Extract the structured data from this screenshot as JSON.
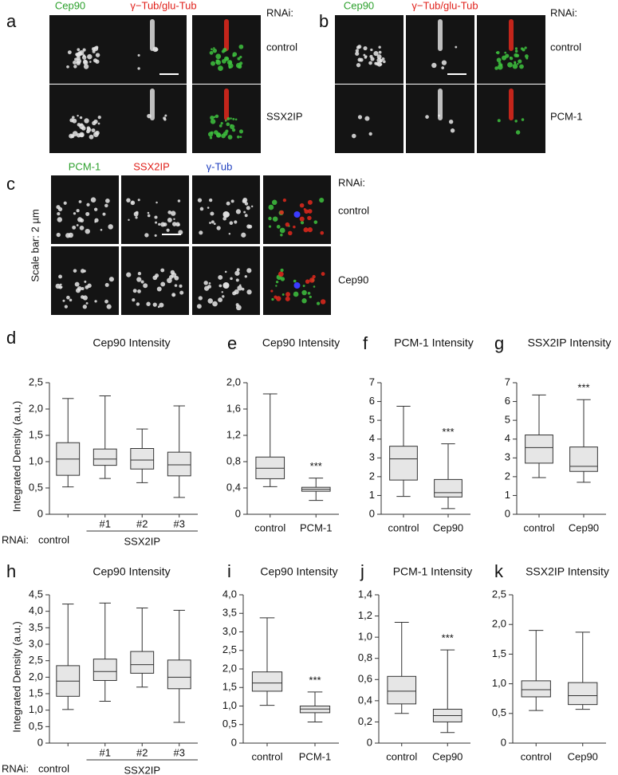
{
  "figure": {
    "panels": [
      {
        "letter": "a",
        "channels": [
          {
            "text": "Cep90",
            "color": "#2ca02c"
          },
          {
            "text": "γ−Tub/glu-Tub",
            "color": "#e0201a"
          }
        ],
        "rnai": "RNAi:",
        "rows": [
          "control",
          "SSX2IP"
        ]
      },
      {
        "letter": "b",
        "channels": [
          {
            "text": "Cep90",
            "color": "#2ca02c"
          },
          {
            "text": "γ−Tub/glu-Tub",
            "color": "#e0201a"
          }
        ],
        "rnai": "RNAi:",
        "rows": [
          "control",
          "PCM-1"
        ]
      },
      {
        "letter": "c",
        "channels": [
          {
            "text": "PCM-1",
            "color": "#2ca02c"
          },
          {
            "text": "SSX2IP",
            "color": "#e0201a"
          },
          {
            "text": "γ-Tub",
            "color": "#1f3fbf"
          }
        ],
        "rnai": "RNAi:",
        "rows": [
          "control",
          "Cep90"
        ]
      }
    ],
    "scale_note": "Scale bar: 2 µm"
  },
  "chart_data": [
    {
      "type": "box",
      "letter": "d",
      "title": "Cep90 Intensity",
      "ylabel": "Integrated Density (a.u.)",
      "rnai_label": "RNAi:",
      "group_label": "SSX2IP",
      "categories": [
        "control",
        "#1",
        "#2",
        "#3"
      ],
      "min": [
        0.52,
        0.68,
        0.6,
        0.32
      ],
      "q1": [
        0.74,
        0.93,
        0.86,
        0.73
      ],
      "median": [
        1.05,
        1.05,
        1.03,
        0.94
      ],
      "q3": [
        1.36,
        1.24,
        1.25,
        1.18
      ],
      "max": [
        2.2,
        2.25,
        1.62,
        2.06
      ],
      "significance": [
        null,
        null,
        null,
        null
      ],
      "ylim": [
        0,
        2.5
      ],
      "yticks": [
        0,
        {
          "value": 0.5,
          "label": "0,5"
        },
        {
          "value": 1,
          "label": "1,0"
        },
        {
          "value": 1.5,
          "label": "1,5"
        },
        {
          "value": 2,
          "label": "2,0"
        },
        {
          "value": 2.5,
          "label": "2,5"
        }
      ]
    },
    {
      "type": "box",
      "letter": "e",
      "title": "Cep90 Intensity",
      "categories": [
        "control",
        "PCM-1"
      ],
      "min": [
        0.42,
        0.21
      ],
      "q1": [
        0.54,
        0.35
      ],
      "median": [
        0.7,
        0.38
      ],
      "q3": [
        0.87,
        0.41
      ],
      "max": [
        1.83,
        0.55
      ],
      "significance": [
        null,
        "***"
      ],
      "ylim": [
        0,
        2
      ],
      "yticks": [
        0,
        {
          "value": 0.4,
          "label": "0,4"
        },
        {
          "value": 0.8,
          "label": "0,8"
        },
        {
          "value": 1.2,
          "label": "1,2"
        },
        {
          "value": 1.6,
          "label": "1,6"
        },
        {
          "value": 2,
          "label": "2,0"
        }
      ]
    },
    {
      "type": "box",
      "letter": "f",
      "title": "PCM-1 Intensity",
      "categories": [
        "control",
        "Cep90"
      ],
      "min": [
        0.95,
        0.3
      ],
      "q1": [
        1.82,
        0.92
      ],
      "median": [
        2.95,
        1.15
      ],
      "q3": [
        3.62,
        1.85
      ],
      "max": [
        5.75,
        3.75
      ],
      "significance": [
        null,
        "***"
      ],
      "ylim": [
        0,
        7
      ],
      "yticks": [
        0,
        1,
        2,
        3,
        4,
        5,
        6,
        7
      ]
    },
    {
      "type": "box",
      "letter": "g",
      "title": "SSX2IP Intensity",
      "categories": [
        "control",
        "Cep90"
      ],
      "min": [
        1.95,
        1.7
      ],
      "q1": [
        2.72,
        2.28
      ],
      "median": [
        3.55,
        2.55
      ],
      "q3": [
        4.22,
        3.58
      ],
      "max": [
        6.35,
        6.1
      ],
      "significance": [
        null,
        "***"
      ],
      "ylim": [
        0,
        7
      ],
      "yticks": [
        0,
        1,
        2,
        3,
        4,
        5,
        6,
        7
      ]
    },
    {
      "type": "box",
      "letter": "h",
      "title": "Cep90 Intensity",
      "ylabel": "Integrated Density (a.u.)",
      "rnai_label": "RNAi:",
      "group_label": "SSX2IP",
      "categories": [
        "control",
        "#1",
        "#2",
        "#3"
      ],
      "min": [
        1.02,
        1.27,
        1.7,
        0.63
      ],
      "q1": [
        1.42,
        1.9,
        2.12,
        1.65
      ],
      "median": [
        1.88,
        2.17,
        2.38,
        2.0
      ],
      "q3": [
        2.35,
        2.55,
        2.78,
        2.52
      ],
      "max": [
        4.22,
        4.25,
        4.1,
        4.03
      ],
      "significance": [
        null,
        null,
        null,
        null
      ],
      "ylim": [
        0,
        4.5
      ],
      "yticks": [
        0,
        {
          "value": 0.5,
          "label": "0,5"
        },
        {
          "value": 1,
          "label": "1,0"
        },
        {
          "value": 1.5,
          "label": "1,5"
        },
        {
          "value": 2,
          "label": "2,0"
        },
        {
          "value": 2.5,
          "label": "2,5"
        },
        {
          "value": 3,
          "label": "3,0"
        },
        {
          "value": 3.5,
          "label": "3,5"
        },
        {
          "value": 4,
          "label": "4,0"
        },
        {
          "value": 4.5,
          "label": "4,5"
        }
      ]
    },
    {
      "type": "box",
      "letter": "i",
      "title": "Cep90 Intensity",
      "categories": [
        "control",
        "PCM-1"
      ],
      "min": [
        1.02,
        0.57
      ],
      "q1": [
        1.4,
        0.82
      ],
      "median": [
        1.62,
        0.92
      ],
      "q3": [
        1.92,
        1.0
      ],
      "max": [
        3.38,
        1.38
      ],
      "significance": [
        null,
        "***"
      ],
      "ylim": [
        0,
        4
      ],
      "yticks": [
        0,
        {
          "value": 0.5,
          "label": "0,5"
        },
        {
          "value": 1,
          "label": "1,0"
        },
        {
          "value": 1.5,
          "label": "1,5"
        },
        {
          "value": 2,
          "label": "2,0"
        },
        {
          "value": 2.5,
          "label": "2,5"
        },
        {
          "value": 3,
          "label": "3,0"
        },
        {
          "value": 3.5,
          "label": "3,5"
        },
        {
          "value": 4,
          "label": "4,0"
        }
      ]
    },
    {
      "type": "box",
      "letter": "j",
      "title": "PCM-1 Intensity",
      "categories": [
        "control",
        "Cep90"
      ],
      "min": [
        0.28,
        0.1
      ],
      "q1": [
        0.37,
        0.2
      ],
      "median": [
        0.49,
        0.26
      ],
      "q3": [
        0.63,
        0.32
      ],
      "max": [
        1.14,
        0.88
      ],
      "significance": [
        null,
        "***"
      ],
      "ylim": [
        0,
        1.4
      ],
      "yticks": [
        0,
        {
          "value": 0.2,
          "label": "0,2"
        },
        {
          "value": 0.4,
          "label": "0,4"
        },
        {
          "value": 0.6,
          "label": "0,6"
        },
        {
          "value": 0.8,
          "label": "0,8"
        },
        {
          "value": 1,
          "label": "1,0"
        },
        {
          "value": 1.2,
          "label": "1,2"
        },
        {
          "value": 1.4,
          "label": "1,4"
        }
      ]
    },
    {
      "type": "box",
      "letter": "k",
      "title": "SSX2IP Intensity",
      "categories": [
        "control",
        "Cep90"
      ],
      "min": [
        0.55,
        0.57
      ],
      "q1": [
        0.78,
        0.65
      ],
      "median": [
        0.9,
        0.8
      ],
      "q3": [
        1.05,
        1.02
      ],
      "max": [
        1.9,
        1.87
      ],
      "significance": [
        null,
        null
      ],
      "ylim": [
        0,
        2.5
      ],
      "yticks": [
        0,
        {
          "value": 0.5,
          "label": "0,5"
        },
        {
          "value": 1,
          "label": "1,0"
        },
        {
          "value": 1.5,
          "label": "1,5"
        },
        {
          "value": 2,
          "label": "2,0"
        },
        {
          "value": 2.5,
          "label": "2,5"
        }
      ]
    }
  ]
}
